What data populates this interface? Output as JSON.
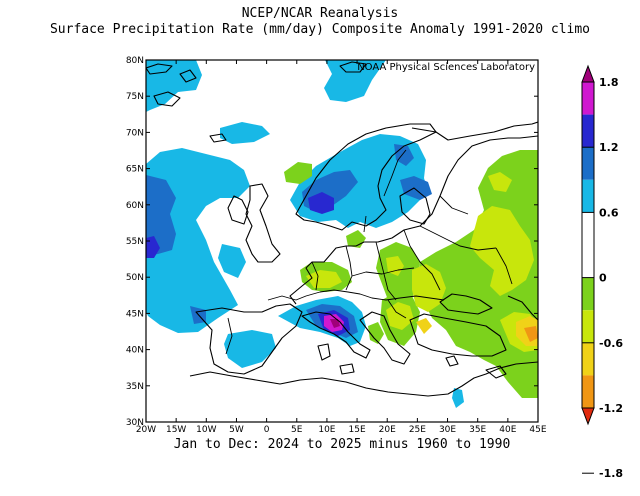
{
  "title_line1": "NCEP/NCAR Reanalysis",
  "title_line2": "Surface Precipitation Rate (mm/day) Composite Anomaly 1991-2020 climo",
  "credit": "NOAA Physical Sciences Laboratory",
  "footer": "Jan to Dec: 2024 to 2025 minus 1960 to 1990",
  "map": {
    "lon_range": [
      -20,
      45
    ],
    "lat_range": [
      30,
      80
    ],
    "lat_ticks": [
      "30N",
      "35N",
      "40N",
      "45N",
      "50N",
      "55N",
      "60N",
      "65N",
      "70N",
      "75N",
      "80N"
    ],
    "lon_ticks": [
      "20W",
      "15W",
      "10W",
      "5W",
      "0",
      "5E",
      "10E",
      "15E",
      "20E",
      "25E",
      "30E",
      "35E",
      "40E",
      "45E"
    ]
  },
  "colorbar": {
    "labels": [
      "1.8",
      "1.2",
      "0.6",
      "0",
      "-0.6",
      "-1.2",
      "-1.8"
    ],
    "colors": [
      "#a0007a",
      "#d018d0",
      "#2828d0",
      "#1c6ec8",
      "#18b8e6",
      "#ffffff",
      "#ffffff",
      "#7cd21c",
      "#c8e60c",
      "#f0d218",
      "#f09614",
      "#e02a0e"
    ]
  }
}
